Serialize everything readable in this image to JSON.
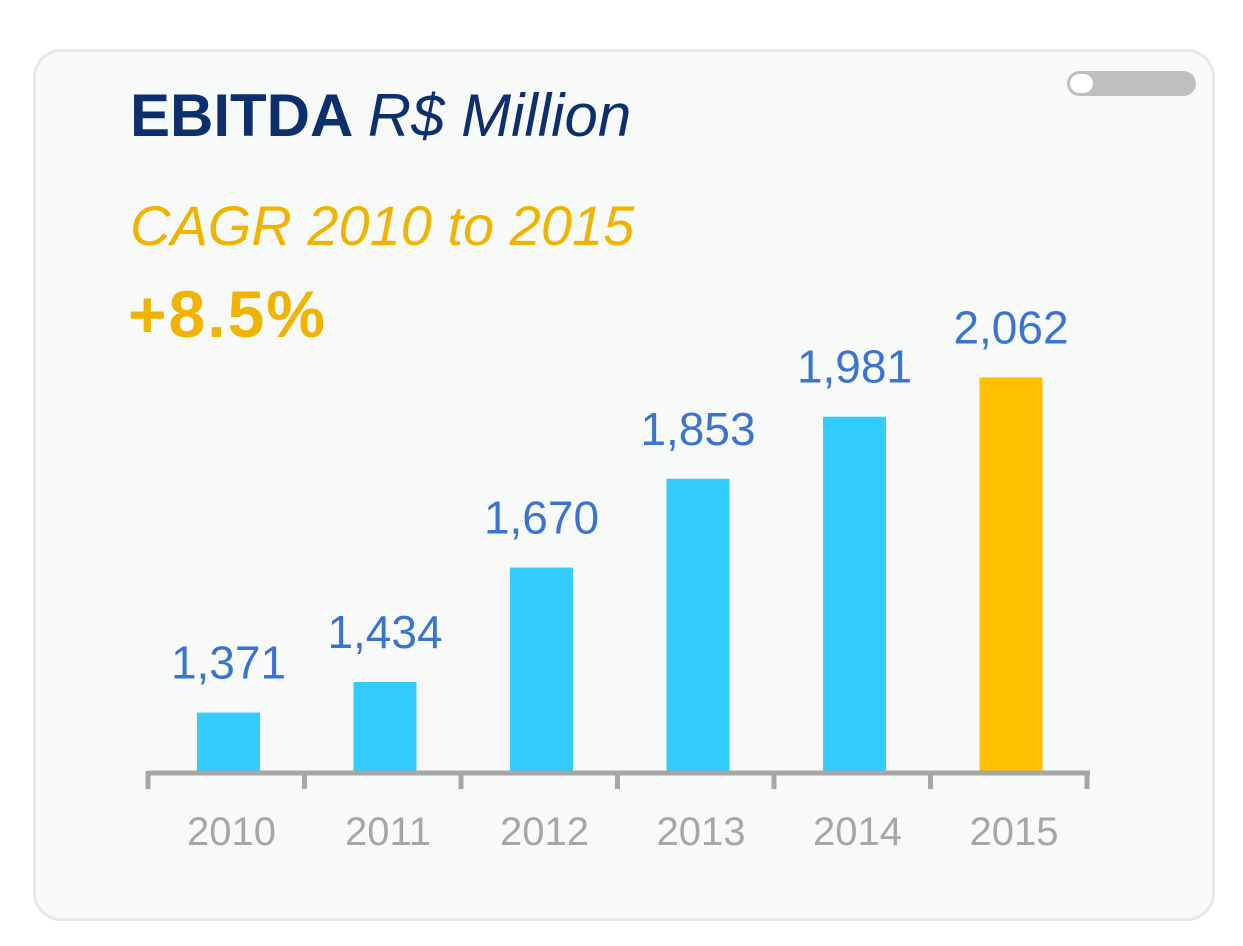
{
  "header": {
    "title_bold": "EBITDA",
    "title_italic": "R$ Million",
    "cagr_label": "CAGR 2010 to 2015",
    "cagr_value": "+8.5%"
  },
  "chart_data": {
    "type": "bar",
    "categories": [
      "2010",
      "2011",
      "2012",
      "2013",
      "2014",
      "2015"
    ],
    "values": [
      1371,
      1434,
      1670,
      1853,
      1981,
      2062
    ],
    "value_labels": [
      "1,371",
      "1,434",
      "1,670",
      "1,853",
      "1,981",
      "2,062"
    ],
    "title": "EBITDA R$ Million",
    "xlabel": "",
    "ylabel": "",
    "grid": false,
    "legend": "none",
    "colors": {
      "bar": "#33ccff",
      "highlight_bar": "#ffc000",
      "value_label": "#3a74cf",
      "axis": "#a6a6a6"
    },
    "highlight_index": 5
  }
}
